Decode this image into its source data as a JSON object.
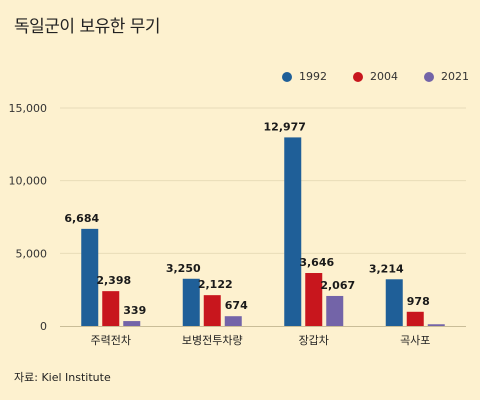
{
  "title": "독일군이 보유한 무기",
  "source": "자료: Kiel Institute",
  "colors": {
    "background": "#fdf1cf",
    "series_1992": "#1f5f98",
    "series_2004": "#c8161d",
    "series_2021": "#7364a8",
    "grid": "#e8dcb8"
  },
  "chart_data": {
    "type": "bar",
    "title": "독일군이 보유한 무기",
    "xlabel": "",
    "ylabel": "",
    "categories": [
      "주력전차",
      "보병전투차량",
      "장갑차",
      "곡사포"
    ],
    "series": [
      {
        "name": "1992",
        "values": [
          6684,
          3250,
          12977,
          3214
        ],
        "labels": [
          "6,684",
          "3,250",
          "12,977",
          "3,214"
        ]
      },
      {
        "name": "2004",
        "values": [
          2398,
          2122,
          3646,
          978
        ],
        "labels": [
          "2,398",
          "2,122",
          "3,646",
          "978"
        ]
      },
      {
        "name": "2021",
        "values": [
          339,
          674,
          2067,
          120
        ],
        "labels": [
          "339",
          "674",
          "2,067",
          ""
        ]
      }
    ],
    "ylim": [
      0,
      15000
    ],
    "yticks": [
      0,
      5000,
      10000,
      15000
    ],
    "ytick_labels": [
      "0",
      "5,000",
      "10,000",
      "15,000"
    ],
    "grid": true,
    "legend_position": "top-right"
  }
}
